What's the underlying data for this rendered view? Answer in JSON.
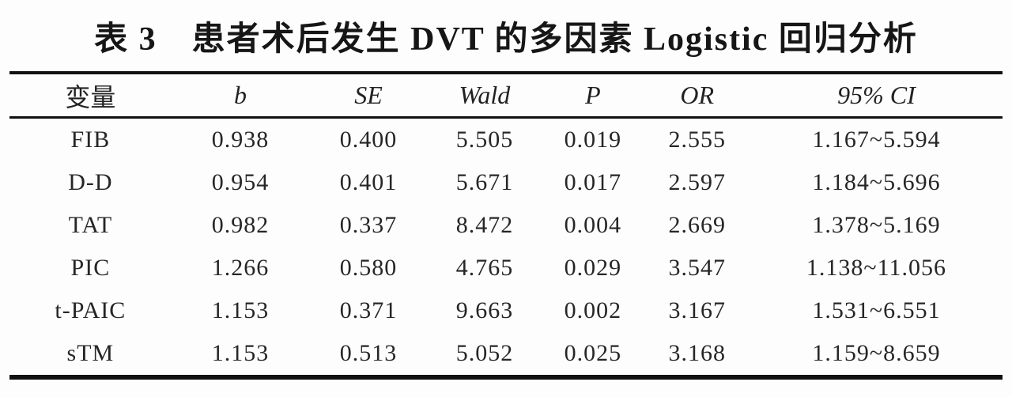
{
  "title": "表 3　患者术后发生 DVT 的多因素 Logistic 回归分析",
  "table": {
    "columns": [
      "变量",
      "b",
      "SE",
      "Wald",
      "P",
      "OR",
      "95% CI"
    ],
    "keys": [
      "variable",
      "b",
      "se",
      "wald",
      "p",
      "or",
      "ci"
    ],
    "rows": [
      {
        "variable": "FIB",
        "b": "0.938",
        "se": "0.400",
        "wald": "5.505",
        "p": "0.019",
        "or": "2.555",
        "ci": "1.167~5.594"
      },
      {
        "variable": "D-D",
        "b": "0.954",
        "se": "0.401",
        "wald": "5.671",
        "p": "0.017",
        "or": "2.597",
        "ci": "1.184~5.696"
      },
      {
        "variable": "TAT",
        "b": "0.982",
        "se": "0.337",
        "wald": "8.472",
        "p": "0.004",
        "or": "2.669",
        "ci": "1.378~5.169"
      },
      {
        "variable": "PIC",
        "b": "1.266",
        "se": "0.580",
        "wald": "4.765",
        "p": "0.029",
        "or": "3.547",
        "ci": "1.138~11.056"
      },
      {
        "variable": "t-PAIC",
        "b": "1.153",
        "se": "0.371",
        "wald": "9.663",
        "p": "0.002",
        "or": "3.167",
        "ci": "1.531~6.551"
      },
      {
        "variable": "sTM",
        "b": "1.153",
        "se": "0.513",
        "wald": "5.052",
        "p": "0.025",
        "or": "3.168",
        "ci": "1.159~8.659"
      }
    ]
  }
}
